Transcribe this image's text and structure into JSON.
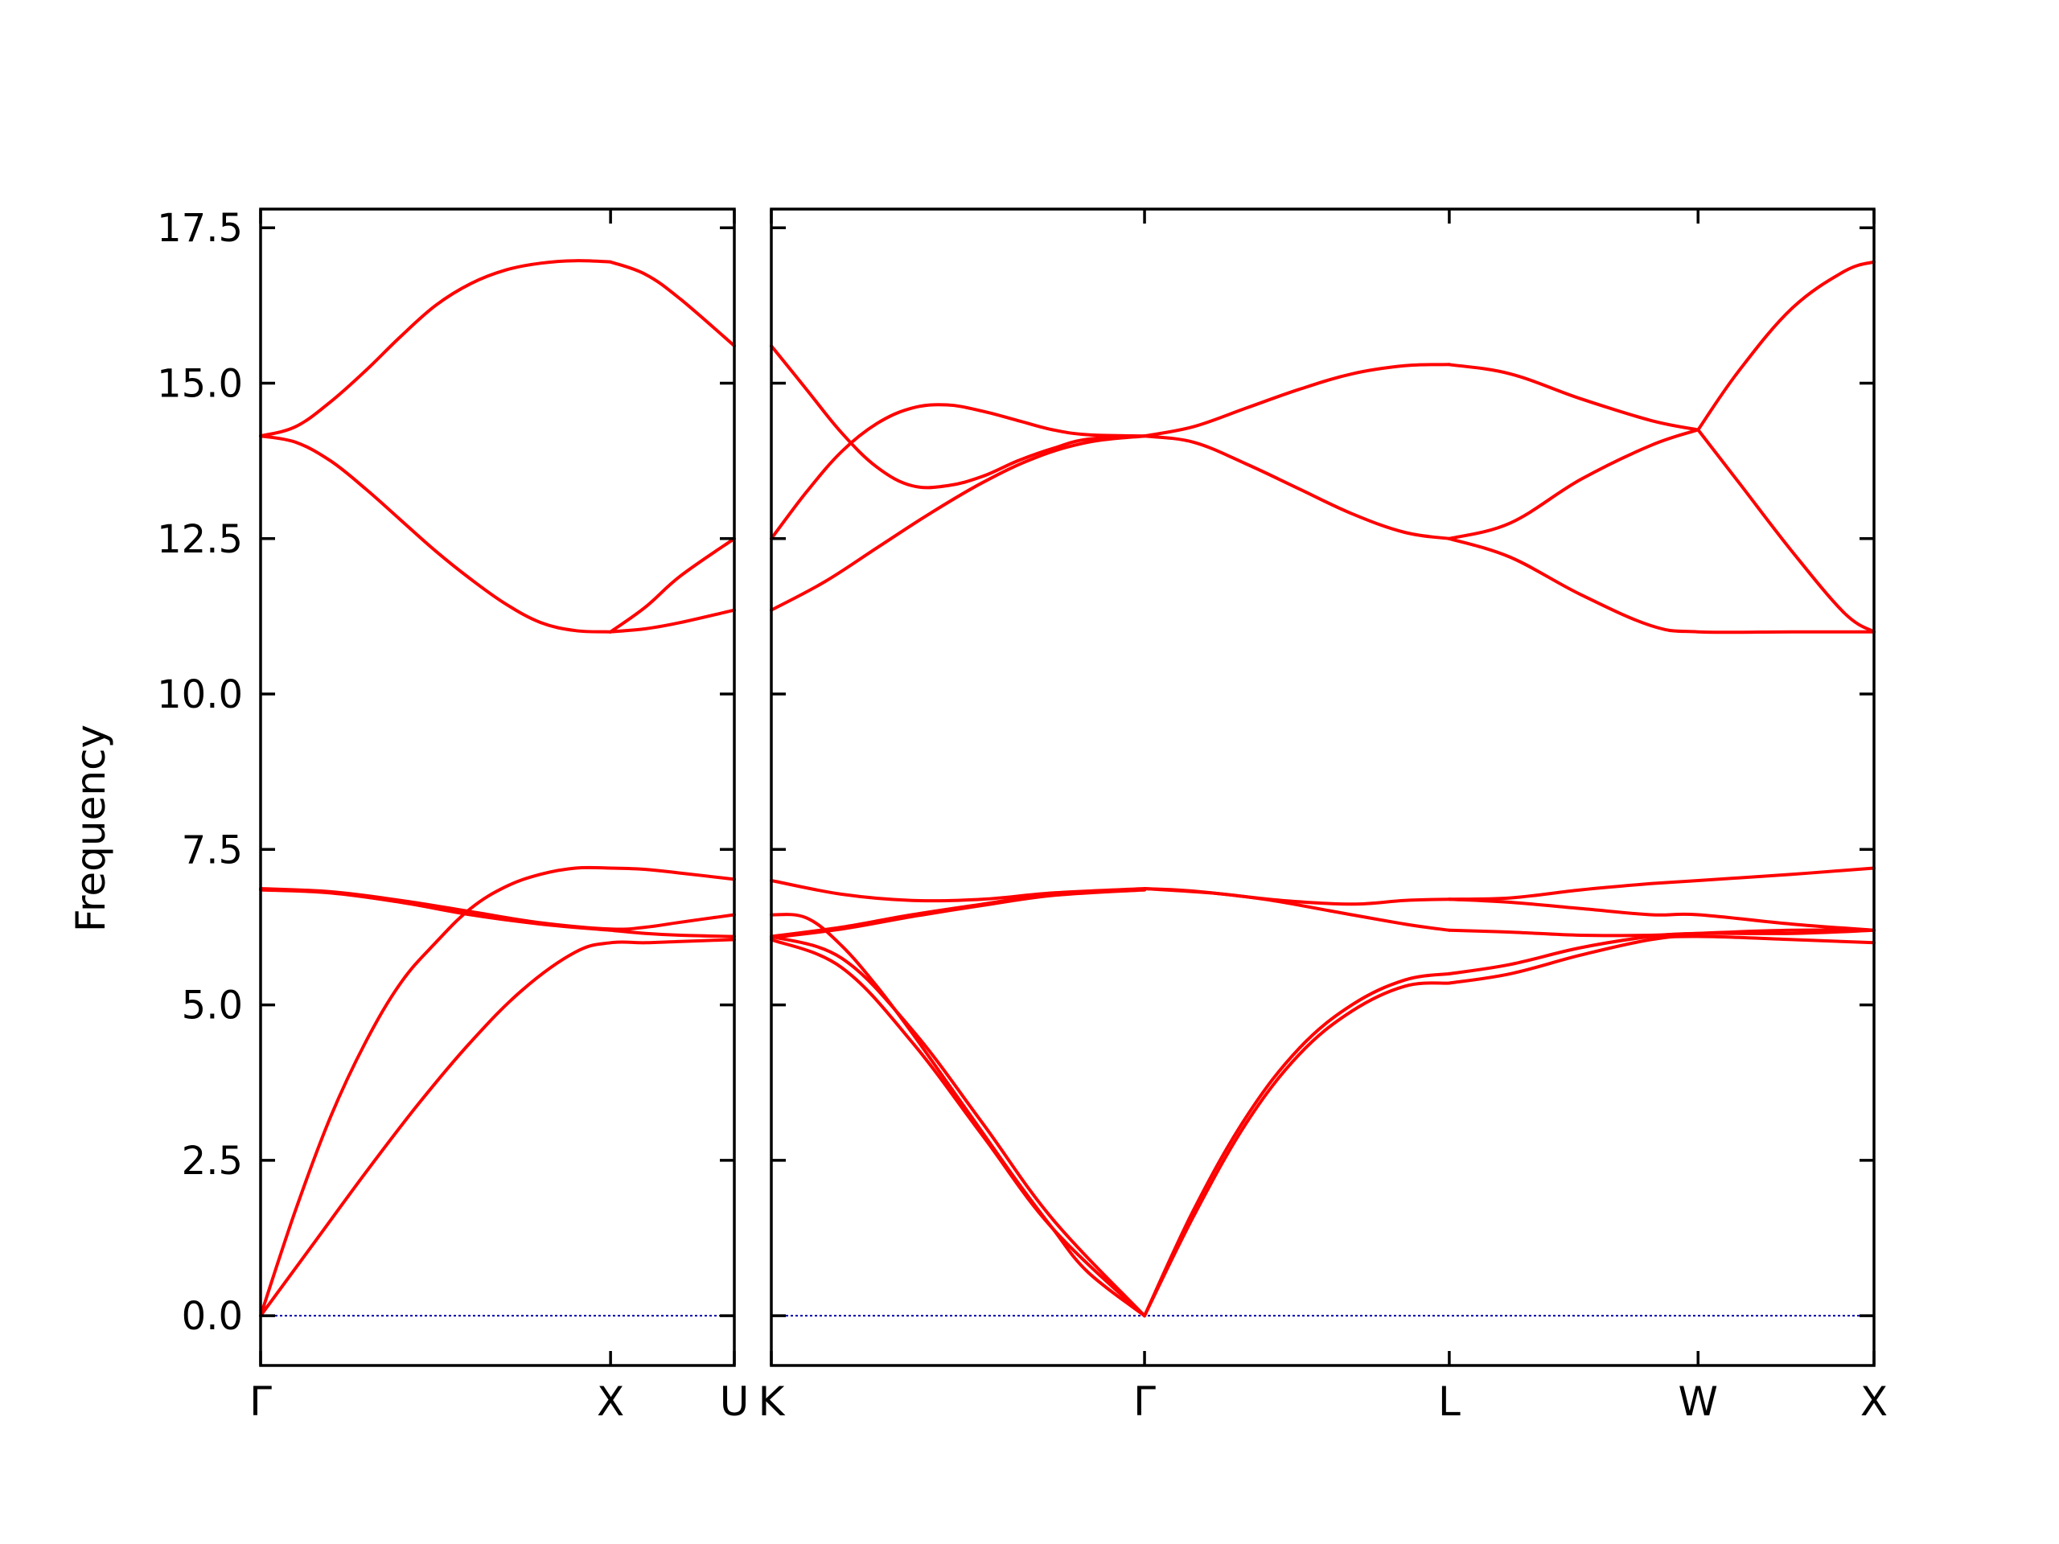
{
  "chart_data": {
    "type": "line",
    "ylabel": "Frequency",
    "ylim": [
      -0.8,
      17.8
    ],
    "yticks": [
      "0.0",
      "2.5",
      "5.0",
      "7.5",
      "10.0",
      "12.5",
      "15.0",
      "17.5"
    ],
    "panels": [
      {
        "xticks": [
          {
            "label": "Γ",
            "at": 0
          },
          {
            "label": "X",
            "at": 1
          },
          {
            "label": "U",
            "at": 1.3536
          }
        ],
        "xlim": [
          0,
          1.3536
        ],
        "series": [
          {
            "x": [
              0,
              0.15,
              0.3,
              0.45,
              0.6,
              0.75,
              0.9,
              1.0,
              1.1,
              1.2,
              1.3536
            ],
            "y": [
              0.0,
              1.15,
              2.3,
              3.4,
              4.4,
              5.25,
              5.85,
              6.0,
              6.0,
              6.02,
              6.05
            ]
          },
          {
            "x": [
              0,
              0.1,
              0.2,
              0.3,
              0.4,
              0.5,
              0.6,
              0.7,
              0.8,
              0.9,
              1.0,
              1.1,
              1.2,
              1.3536
            ],
            "y": [
              0.0,
              1.7,
              3.2,
              4.4,
              5.35,
              6.0,
              6.55,
              6.9,
              7.1,
              7.2,
              7.2,
              7.18,
              7.12,
              7.02
            ]
          },
          {
            "x": [
              0,
              0.2,
              0.4,
              0.6,
              0.8,
              1.0,
              1.1,
              1.2,
              1.3536
            ],
            "y": [
              6.85,
              6.8,
              6.65,
              6.45,
              6.3,
              6.2,
              6.15,
              6.12,
              6.1
            ]
          },
          {
            "x": [
              0,
              0.2,
              0.4,
              0.6,
              0.8,
              1.0,
              1.1,
              1.2,
              1.3536
            ],
            "y": [
              6.87,
              6.82,
              6.68,
              6.5,
              6.32,
              6.22,
              6.25,
              6.33,
              6.45
            ]
          },
          {
            "x": [
              0,
              0.1,
              0.2,
              0.3,
              0.4,
              0.5,
              0.6,
              0.7,
              0.8,
              0.9,
              1.0
            ],
            "y": [
              14.15,
              14.3,
              14.7,
              15.2,
              15.75,
              16.25,
              16.6,
              16.82,
              16.93,
              16.97,
              16.95
            ]
          },
          {
            "x": [
              1.0,
              1.1,
              1.2,
              1.3536
            ],
            "y": [
              16.95,
              16.75,
              16.35,
              15.6
            ]
          },
          {
            "x": [
              0,
              0.1,
              0.2,
              0.3,
              0.4,
              0.5,
              0.6,
              0.7,
              0.8,
              0.9,
              1.0
            ],
            "y": [
              14.15,
              14.05,
              13.75,
              13.3,
              12.8,
              12.3,
              11.85,
              11.45,
              11.15,
              11.02,
              11.0
            ]
          },
          {
            "x": [
              1.0,
              1.1,
              1.2,
              1.3536
            ],
            "y": [
              11.0,
              11.4,
              11.9,
              12.5
            ]
          },
          {
            "x": [
              1.0,
              1.1,
              1.2,
              1.3536
            ],
            "y": [
              11.0,
              11.05,
              11.15,
              11.35
            ]
          }
        ]
      },
      {
        "xticks": [
          {
            "label": "K",
            "at": 0
          },
          {
            "label": "Γ",
            "at": 1.0607
          },
          {
            "label": "L",
            "at": 1.9267
          },
          {
            "label": "W",
            "at": 2.6338
          },
          {
            "label": "X",
            "at": 3.1338
          }
        ],
        "xlim": [
          0,
          3.1338
        ],
        "series": [
          {
            "x": [
              0,
              0.2,
              0.4,
              0.6,
              0.8,
              1.0607
            ],
            "y": [
              6.05,
              5.6,
              4.4,
              2.9,
              1.4,
              0.0
            ]
          },
          {
            "x": [
              0,
              0.2,
              0.4,
              0.6,
              0.8,
              1.0607
            ],
            "y": [
              6.1,
              5.75,
              4.6,
              3.1,
              1.55,
              0.0
            ]
          },
          {
            "x": [
              0,
              0.1,
              0.2,
              0.3,
              0.4,
              0.5,
              0.6,
              0.7,
              0.8,
              0.9,
              1.0607
            ],
            "y": [
              6.45,
              6.4,
              5.95,
              5.3,
              4.55,
              3.75,
              2.95,
              2.15,
              1.4,
              0.7,
              0.0
            ]
          },
          {
            "x": [
              0,
              0.2,
              0.4,
              0.6,
              0.8,
              1.0607
            ],
            "y": [
              7.0,
              6.78,
              6.68,
              6.7,
              6.8,
              6.87
            ]
          },
          {
            "x": [
              0,
              0.2,
              0.4,
              0.6,
              0.8,
              1.0607
            ],
            "y": [
              6.1,
              6.25,
              6.45,
              6.62,
              6.78,
              6.86
            ]
          },
          {
            "x": [
              0,
              0.2,
              0.4,
              0.6,
              0.8,
              1.0607
            ],
            "y": [
              6.08,
              6.22,
              6.42,
              6.6,
              6.76,
              6.85
            ]
          },
          {
            "x": [
              1.0607,
              1.2,
              1.35,
              1.5,
              1.65,
              1.8,
              1.9267
            ],
            "y": [
              0.0,
              1.6,
              3.1,
              4.2,
              4.9,
              5.3,
              5.35
            ]
          },
          {
            "x": [
              1.0607,
              1.2,
              1.35,
              1.5,
              1.65,
              1.8,
              1.9267
            ],
            "y": [
              0.0,
              1.7,
              3.2,
              4.3,
              5.0,
              5.4,
              5.5
            ]
          },
          {
            "x": [
              1.0607,
              1.2,
              1.4,
              1.6,
              1.8,
              1.9267
            ],
            "y": [
              6.87,
              6.83,
              6.7,
              6.5,
              6.3,
              6.2
            ]
          },
          {
            "x": [
              1.0607,
              1.25,
              1.45,
              1.65,
              1.8,
              1.9267
            ],
            "y": [
              6.87,
              6.8,
              6.68,
              6.62,
              6.68,
              6.7
            ]
          },
          {
            "x": [
              1.9267,
              2.1,
              2.3,
              2.5,
              2.6338,
              2.9,
              3.1338
            ],
            "y": [
              5.35,
              5.5,
              5.8,
              6.05,
              6.1,
              6.05,
              6.0
            ]
          },
          {
            "x": [
              1.9267,
              2.1,
              2.3,
              2.5,
              2.6338,
              2.9,
              3.1338
            ],
            "y": [
              5.5,
              5.65,
              5.92,
              6.1,
              6.15,
              6.2,
              6.2
            ]
          },
          {
            "x": [
              1.9267,
              2.1,
              2.3,
              2.5,
              2.6338,
              2.9,
              3.1338
            ],
            "y": [
              6.2,
              6.17,
              6.12,
              6.12,
              6.15,
              6.15,
              6.2
            ]
          },
          {
            "x": [
              1.9267,
              2.1,
              2.3,
              2.5,
              2.6338,
              2.9,
              3.1338
            ],
            "y": [
              6.7,
              6.72,
              6.85,
              6.95,
              7.0,
              7.1,
              7.2
            ]
          },
          {
            "x": [
              1.9267,
              2.1,
              2.3,
              2.5,
              2.6338,
              2.9,
              3.1338
            ],
            "y": [
              6.7,
              6.65,
              6.55,
              6.45,
              6.45,
              6.3,
              6.2
            ]
          },
          {
            "x": [
              0,
              0.1,
              0.2,
              0.3,
              0.4,
              0.5,
              0.6,
              0.7,
              0.8,
              0.9,
              1.0607
            ],
            "y": [
              15.6,
              14.9,
              14.2,
              13.65,
              13.35,
              13.35,
              13.5,
              13.75,
              13.95,
              14.1,
              14.15
            ]
          },
          {
            "x": [
              0,
              0.1,
              0.2,
              0.3,
              0.4,
              0.5,
              0.6,
              0.7,
              0.8,
              0.9,
              1.0607
            ],
            "y": [
              12.5,
              13.25,
              13.9,
              14.35,
              14.6,
              14.65,
              14.55,
              14.4,
              14.25,
              14.17,
              14.15
            ]
          },
          {
            "x": [
              0,
              0.15,
              0.3,
              0.45,
              0.6,
              0.75,
              0.9,
              1.0607
            ],
            "y": [
              11.35,
              11.8,
              12.35,
              12.9,
              13.4,
              13.8,
              14.05,
              14.15
            ]
          },
          {
            "x": [
              1.0607,
              1.2,
              1.35,
              1.5,
              1.65,
              1.8,
              1.9267
            ],
            "y": [
              14.15,
              14.3,
              14.6,
              14.9,
              15.15,
              15.28,
              15.3
            ]
          },
          {
            "x": [
              1.0607,
              1.2,
              1.35,
              1.5,
              1.65,
              1.8,
              1.9267
            ],
            "y": [
              14.15,
              14.05,
              13.7,
              13.3,
              12.9,
              12.6,
              12.5
            ]
          },
          {
            "x": [
              1.9267,
              2.1,
              2.3,
              2.5,
              2.6338
            ],
            "y": [
              15.3,
              15.15,
              14.75,
              14.4,
              14.25
            ]
          },
          {
            "x": [
              1.9267,
              2.1,
              2.3,
              2.5,
              2.6338
            ],
            "y": [
              12.5,
              12.75,
              13.45,
              14.0,
              14.25
            ]
          },
          {
            "x": [
              1.9267,
              2.1,
              2.3,
              2.5,
              2.6338,
              2.9,
              3.1338
            ],
            "y": [
              12.5,
              12.2,
              11.6,
              11.1,
              11.0,
              11.0,
              11.0
            ]
          },
          {
            "x": [
              2.6338,
              2.75,
              2.9,
              3.05,
              3.1338
            ],
            "y": [
              14.25,
              13.4,
              12.3,
              11.3,
              11.0
            ]
          },
          {
            "x": [
              2.6338,
              2.75,
              2.9,
              3.05,
              3.1338
            ],
            "y": [
              14.25,
              15.2,
              16.2,
              16.8,
              16.95
            ]
          }
        ]
      }
    ],
    "line_color": "#ff0000",
    "zero_line_color": "#0000aa",
    "grid": false,
    "legend": "none"
  }
}
